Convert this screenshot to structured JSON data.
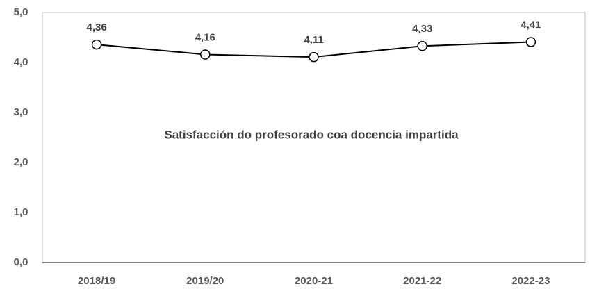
{
  "chart_data": {
    "type": "line",
    "title": "Satisfacción do profesorado coa docencia impartida",
    "categories": [
      "2018/19",
      "2019/20",
      "2020-21",
      "2021-22",
      "2022-23"
    ],
    "series": [
      {
        "name": "Satisfacción do profesorado coa docencia impartida",
        "color": "#000000",
        "values": [
          4.36,
          4.16,
          4.11,
          4.33,
          4.41
        ],
        "value_labels": [
          "4,36",
          "4,16",
          "4,11",
          "4,33",
          "4,41"
        ]
      }
    ],
    "ylim": [
      0,
      5
    ],
    "yticks": [
      {
        "value": 0,
        "label": "0,0"
      },
      {
        "value": 1,
        "label": "1,0"
      },
      {
        "value": 2,
        "label": "2,0"
      },
      {
        "value": 3,
        "label": "3,0"
      },
      {
        "value": 4,
        "label": "4,0"
      },
      {
        "value": 5,
        "label": "5,0"
      }
    ],
    "grid": false
  }
}
